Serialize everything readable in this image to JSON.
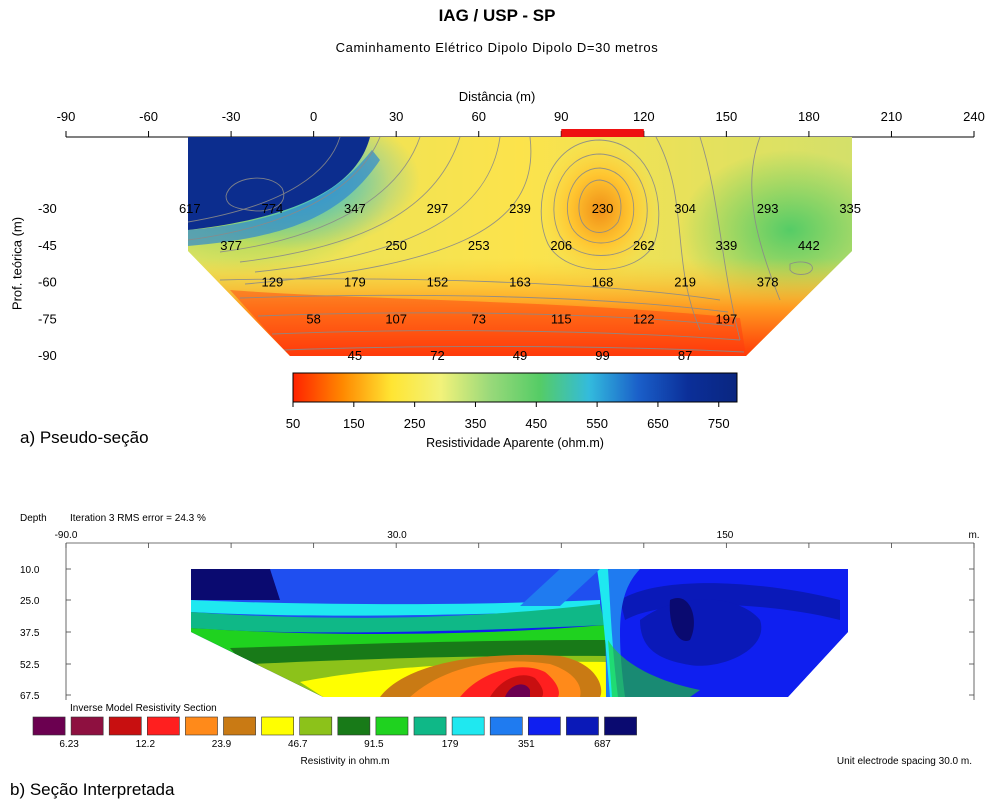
{
  "header": {
    "title": "IAG / USP - SP",
    "subtitle": "Caminhamento Elétrico Dipolo Dipolo D=30 metros"
  },
  "chart_data": [
    {
      "type": "heatmap",
      "name": "pseudo-section",
      "caption": "a) Pseudo-seção",
      "xlabel": "Distância (m)",
      "ylabel": "Prof. teórica (m)",
      "x_ticks": [
        -90,
        -60,
        -30,
        0,
        30,
        60,
        90,
        120,
        150,
        180,
        210,
        240
      ],
      "y_ticks": [
        -30,
        -45,
        -60,
        -75,
        -90
      ],
      "xlim": [
        -90,
        240
      ],
      "ylim": [
        -90,
        -30
      ],
      "highlight_segment": {
        "x_start": 90,
        "x_end": 120,
        "color": "#ee1111"
      },
      "points": [
        {
          "x": -45,
          "y": -30,
          "value": "617"
        },
        {
          "x": -15,
          "y": -30,
          "value": "774"
        },
        {
          "x": 15,
          "y": -30,
          "value": "347"
        },
        {
          "x": 45,
          "y": -30,
          "value": "297"
        },
        {
          "x": 75,
          "y": -30,
          "value": "239"
        },
        {
          "x": 105,
          "y": -30,
          "value": "230"
        },
        {
          "x": 135,
          "y": -30,
          "value": "304"
        },
        {
          "x": 165,
          "y": -30,
          "value": "293"
        },
        {
          "x": 195,
          "y": -30,
          "value": "335"
        },
        {
          "x": -30,
          "y": -45,
          "value": "377"
        },
        {
          "x": 30,
          "y": -45,
          "value": "250"
        },
        {
          "x": 60,
          "y": -45,
          "value": "253"
        },
        {
          "x": 90,
          "y": -45,
          "value": "206"
        },
        {
          "x": 120,
          "y": -45,
          "value": "262"
        },
        {
          "x": 150,
          "y": -45,
          "value": "339"
        },
        {
          "x": 180,
          "y": -45,
          "value": "442"
        },
        {
          "x": -15,
          "y": -60,
          "value": "129"
        },
        {
          "x": 15,
          "y": -60,
          "value": "179"
        },
        {
          "x": 45,
          "y": -60,
          "value": "152"
        },
        {
          "x": 75,
          "y": -60,
          "value": "163"
        },
        {
          "x": 105,
          "y": -60,
          "value": "168"
        },
        {
          "x": 135,
          "y": -60,
          "value": "219"
        },
        {
          "x": 165,
          "y": -60,
          "value": "378"
        },
        {
          "x": 0,
          "y": -75,
          "value": "58"
        },
        {
          "x": 30,
          "y": -75,
          "value": "107"
        },
        {
          "x": 60,
          "y": -75,
          "value": "73"
        },
        {
          "x": 90,
          "y": -75,
          "value": "115"
        },
        {
          "x": 120,
          "y": -75,
          "value": "122"
        },
        {
          "x": 150,
          "y": -75,
          "value": "197"
        },
        {
          "x": 15,
          "y": -90,
          "value": "45"
        },
        {
          "x": 45,
          "y": -90,
          "value": "72"
        },
        {
          "x": 75,
          "y": -90,
          "value": "49"
        },
        {
          "x": 105,
          "y": -90,
          "value": "99"
        },
        {
          "x": 135,
          "y": -90,
          "value": "87"
        }
      ],
      "colorbar": {
        "title": "Resistividade Aparente (ohm.m)",
        "ticks": [
          50,
          150,
          250,
          350,
          450,
          550,
          650,
          750
        ],
        "range": [
          50,
          780
        ],
        "colors": [
          "#ff2200",
          "#ff8800",
          "#ffe533",
          "#f2f27a",
          "#99d97a",
          "#55cc66",
          "#33bbdd",
          "#1a5fc9",
          "#0b2f99",
          "#0a2680"
        ]
      }
    },
    {
      "type": "heatmap",
      "name": "inverse-model",
      "caption": "b) Seção Interpretada",
      "depth_label": "Depth",
      "iteration_label": "Iteration 3 RMS error = 24.3 %",
      "x_ticks": [
        "-90.0",
        "30.0",
        "150"
      ],
      "x_unit": "m.",
      "depth_ticks": [
        "10.0",
        "25.0",
        "37.5",
        "52.5",
        "67.5"
      ],
      "legend_title": "Inverse Model Resistivity Section",
      "legend_unit": "Resistivity in ohm.m",
      "legend_colors": [
        "#6b0050",
        "#8e1040",
        "#c80f10",
        "#ff1f1f",
        "#ff8a1a",
        "#c97a14",
        "#ffff00",
        "#8cc21a",
        "#187a18",
        "#1fd21f",
        "#0fb887",
        "#1fe8f0",
        "#1f7bf0",
        "#0f1ff0",
        "#0a19b8",
        "#0a0a70"
      ],
      "legend_values": [
        "6.23",
        "12.2",
        "23.9",
        "46.7",
        "91.5",
        "179",
        "351",
        "687"
      ],
      "unit_spacing": "Unit electrode spacing 30.0 m."
    }
  ]
}
